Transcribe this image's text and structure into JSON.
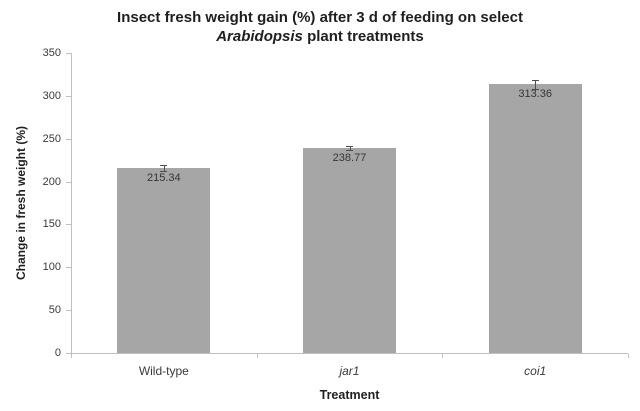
{
  "title": {
    "line1": "Insect fresh weight gain (%) after 3 d of feeding on select",
    "line2_italic": "Arabidopsis",
    "line2_rest": " plant treatments"
  },
  "chart_data": {
    "type": "bar",
    "title": "Insect fresh weight gain (%) after 3 d of feeding on select Arabidopsis plant treatments",
    "xlabel": "Treatment",
    "ylabel": "Change in fresh weight (%)",
    "categories": [
      {
        "label": "Wild-type",
        "italic": false
      },
      {
        "label": "jar1",
        "italic": true
      },
      {
        "label": "coi1",
        "italic": true
      }
    ],
    "series": [
      {
        "name": "Change in fresh weight (%)",
        "values": [
          215.34,
          238.77,
          313.36
        ],
        "value_labels": [
          "215.34",
          "238.77",
          "313.36"
        ],
        "errors": [
          3.5,
          2.5,
          5.5
        ]
      }
    ],
    "ylim": [
      0,
      350
    ],
    "y_ticks": [
      0,
      50,
      100,
      150,
      200,
      250,
      300,
      350
    ],
    "grid": false,
    "legend": "none",
    "colors": {
      "bar": "#a6a6a6",
      "error": "#4d4d4d",
      "axis": "#bfbfbf",
      "tick_label": "#3a3a3a",
      "data_label": "#363636",
      "title": "#1f1f1f"
    }
  }
}
